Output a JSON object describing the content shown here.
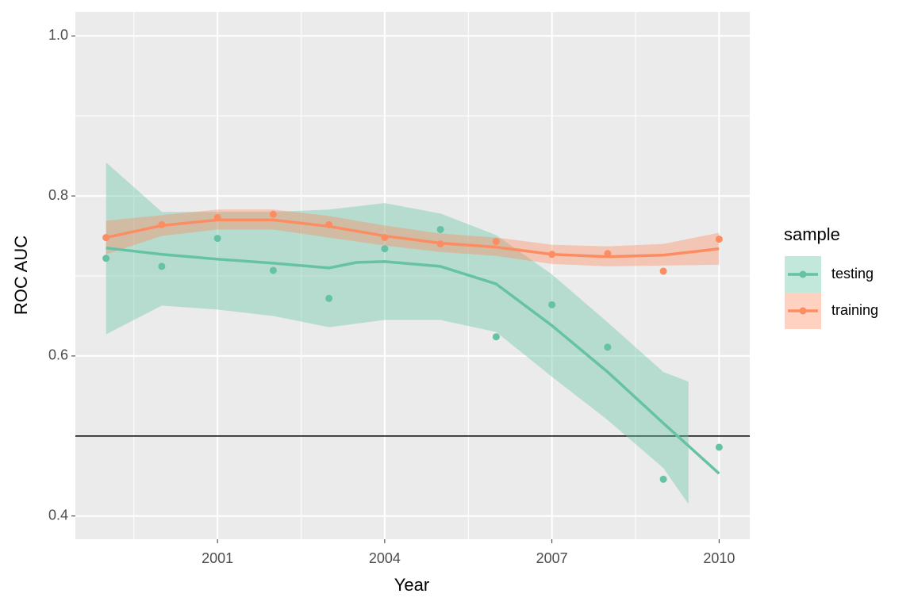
{
  "chart_data": {
    "type": "scatter_smooth",
    "x_label": "Year",
    "y_label": "ROC AUC",
    "legend_title": "sample",
    "xlim": [
      1998.45,
      2010.55
    ],
    "ylim": [
      0.371,
      1.03
    ],
    "xticks": [
      2001,
      2004,
      2007,
      2010
    ],
    "yticks": [
      {
        "value": 0.4,
        "label": "0.4"
      },
      {
        "value": 0.6,
        "label": "0.6"
      },
      {
        "value": 0.8,
        "label": "0.8"
      },
      {
        "value": 1.0,
        "label": "1.0"
      }
    ],
    "minor_xticks": [
      1999.5,
      2002.5,
      2005.5,
      2008.5
    ],
    "minor_yticks": [
      0.5,
      0.7,
      0.9
    ],
    "grid": true,
    "hline": 0.5,
    "legend": "right",
    "x": [
      1999,
      2000,
      2001,
      2002,
      2003,
      2004,
      2005,
      2006,
      2007,
      2008,
      2009,
      2010
    ],
    "series": [
      {
        "name": "testing",
        "color": "#66c2a5",
        "values": [
          0.722,
          0.712,
          0.747,
          0.707,
          0.672,
          0.734,
          0.758,
          0.624,
          0.664,
          0.611,
          0.446,
          0.486
        ],
        "smooth_x": [
          1999,
          2000,
          2001,
          2002,
          2003,
          2003.5,
          2004,
          2005,
          2006,
          2007,
          2008,
          2009,
          2010
        ],
        "smooth": [
          0.735,
          0.727,
          0.721,
          0.716,
          0.71,
          0.717,
          0.718,
          0.712,
          0.69,
          0.638,
          0.58,
          0.516,
          0.453
        ],
        "band_x": [
          1999,
          2000,
          2001,
          2002,
          2003,
          2004,
          2005,
          2006,
          2007,
          2008,
          2009,
          2009.45
        ],
        "lower": [
          0.627,
          0.663,
          0.658,
          0.65,
          0.636,
          0.645,
          0.645,
          0.63,
          0.574,
          0.52,
          0.46,
          0.415
        ],
        "upper": [
          0.842,
          0.78,
          0.78,
          0.78,
          0.783,
          0.791,
          0.778,
          0.751,
          0.702,
          0.642,
          0.58,
          0.568
        ]
      },
      {
        "name": "training",
        "color": "#fc8d62",
        "values": [
          0.748,
          0.764,
          0.773,
          0.777,
          0.764,
          0.748,
          0.74,
          0.743,
          0.727,
          0.728,
          0.706,
          0.746
        ],
        "smooth_x": [
          1999,
          2000,
          2001,
          2002,
          2003,
          2004,
          2005,
          2006,
          2007,
          2008,
          2009,
          2010
        ],
        "smooth": [
          0.748,
          0.763,
          0.77,
          0.77,
          0.762,
          0.75,
          0.741,
          0.736,
          0.727,
          0.724,
          0.726,
          0.734
        ],
        "band_x": [
          1999,
          2000,
          2001,
          2002,
          2003,
          2004,
          2005,
          2006,
          2007,
          2008,
          2009,
          2010
        ],
        "lower": [
          0.727,
          0.75,
          0.758,
          0.758,
          0.748,
          0.738,
          0.73,
          0.725,
          0.715,
          0.712,
          0.713,
          0.714
        ],
        "upper": [
          0.769,
          0.776,
          0.783,
          0.783,
          0.775,
          0.763,
          0.753,
          0.748,
          0.739,
          0.737,
          0.74,
          0.754
        ]
      }
    ]
  }
}
